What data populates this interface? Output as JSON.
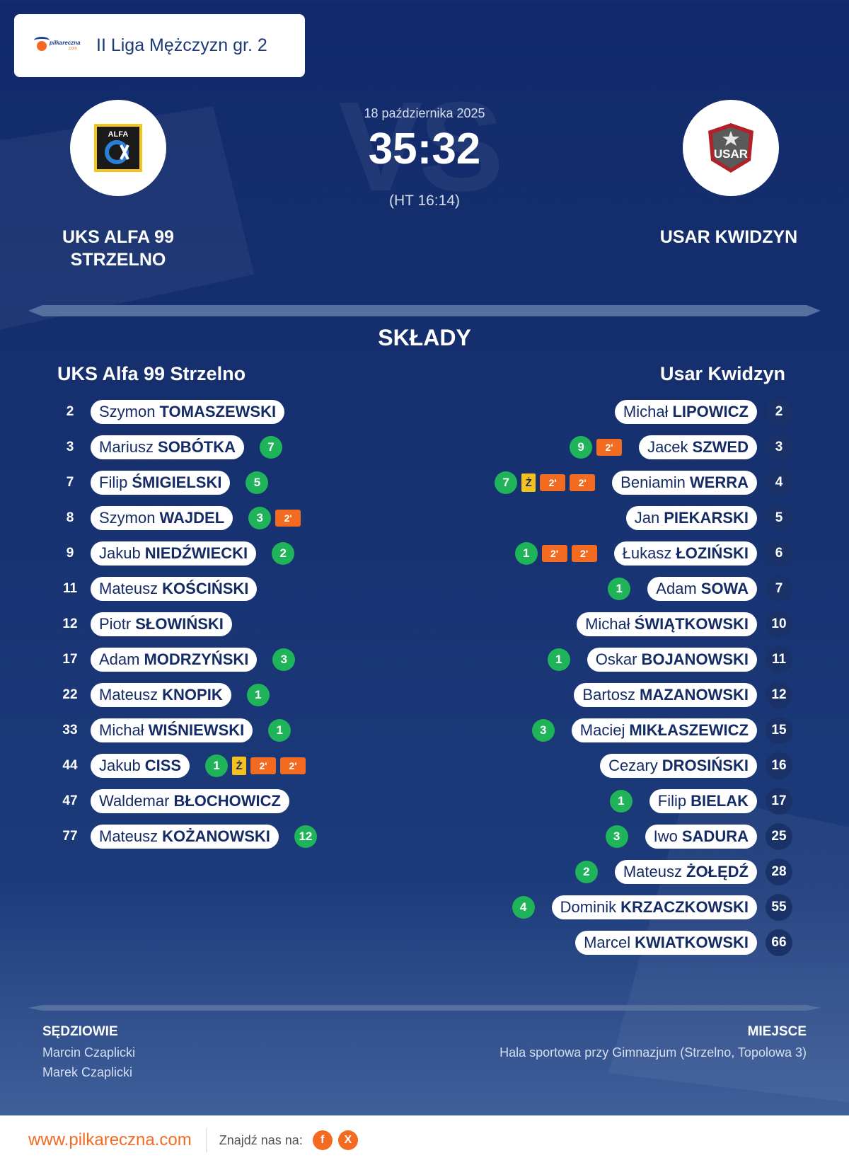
{
  "league": {
    "title": "II Liga Mężczyzn gr. 2",
    "logo_text": "pilkareczna",
    "logo_sub": ".com"
  },
  "match": {
    "date": "18 października 2025",
    "score": "35:32",
    "halftime": "(HT 16:14)",
    "vs": "VS"
  },
  "home": {
    "name_line1": "UKS ALFA 99",
    "name_line2": "STRZELNO",
    "logo_text": "ALFA",
    "roster_title": "UKS Alfa 99 Strzelno",
    "players": [
      {
        "num": "2",
        "first": "Szymon",
        "last": "TOMASZEWSKI",
        "events": []
      },
      {
        "num": "3",
        "first": "Mariusz",
        "last": "SOBÓTKA",
        "events": [
          {
            "type": "goal",
            "text": "7"
          }
        ]
      },
      {
        "num": "7",
        "first": "Filip",
        "last": "ŚMIGIELSKI",
        "events": [
          {
            "type": "goal",
            "text": "5"
          }
        ]
      },
      {
        "num": "8",
        "first": "Szymon",
        "last": "WAJDEL",
        "events": [
          {
            "type": "goal",
            "text": "3"
          },
          {
            "type": "susp",
            "text": "2'"
          }
        ]
      },
      {
        "num": "9",
        "first": "Jakub",
        "last": "NIEDŹWIECKI",
        "events": [
          {
            "type": "goal",
            "text": "2"
          }
        ]
      },
      {
        "num": "11",
        "first": "Mateusz",
        "last": "KOŚCIŃSKI",
        "events": []
      },
      {
        "num": "12",
        "first": "Piotr",
        "last": "SŁOWIŃSKI",
        "events": []
      },
      {
        "num": "17",
        "first": "Adam",
        "last": "MODRZYŃSKI",
        "events": [
          {
            "type": "goal",
            "text": "3"
          }
        ]
      },
      {
        "num": "22",
        "first": "Mateusz",
        "last": "KNOPIK",
        "events": [
          {
            "type": "goal",
            "text": "1"
          }
        ]
      },
      {
        "num": "33",
        "first": "Michał",
        "last": "WIŚNIEWSKI",
        "events": [
          {
            "type": "goal",
            "text": "1"
          }
        ]
      },
      {
        "num": "44",
        "first": "Jakub",
        "last": "CISS",
        "events": [
          {
            "type": "goal",
            "text": "1"
          },
          {
            "type": "yc",
            "text": "Ż"
          },
          {
            "type": "susp",
            "text": "2'"
          },
          {
            "type": "susp",
            "text": "2'"
          }
        ]
      },
      {
        "num": "47",
        "first": "Waldemar",
        "last": "BŁOCHOWICZ",
        "events": []
      },
      {
        "num": "77",
        "first": "Mateusz",
        "last": "KOŻANOWSKI",
        "events": [
          {
            "type": "goal",
            "text": "12"
          }
        ]
      }
    ]
  },
  "away": {
    "name": "USAR KWIDZYN",
    "logo_text": "USAR",
    "roster_title": "Usar Kwidzyn",
    "players": [
      {
        "num": "2",
        "first": "Michał",
        "last": "LIPOWICZ",
        "events": []
      },
      {
        "num": "3",
        "first": "Jacek",
        "last": "SZWED",
        "events": [
          {
            "type": "goal",
            "text": "9"
          },
          {
            "type": "susp",
            "text": "2'"
          }
        ]
      },
      {
        "num": "4",
        "first": "Beniamin",
        "last": "WERRA",
        "events": [
          {
            "type": "goal",
            "text": "7"
          },
          {
            "type": "yc",
            "text": "Ż"
          },
          {
            "type": "susp",
            "text": "2'"
          },
          {
            "type": "susp",
            "text": "2'"
          }
        ]
      },
      {
        "num": "5",
        "first": "Jan",
        "last": "PIEKARSKI",
        "events": []
      },
      {
        "num": "6",
        "first": "Łukasz",
        "last": "ŁOZIŃSKI",
        "events": [
          {
            "type": "goal",
            "text": "1"
          },
          {
            "type": "susp",
            "text": "2'"
          },
          {
            "type": "susp",
            "text": "2'"
          }
        ]
      },
      {
        "num": "7",
        "first": "Adam",
        "last": "SOWA",
        "events": [
          {
            "type": "goal",
            "text": "1"
          }
        ]
      },
      {
        "num": "10",
        "first": "Michał",
        "last": "ŚWIĄTKOWSKI",
        "events": []
      },
      {
        "num": "11",
        "first": "Oskar",
        "last": "BOJANOWSKI",
        "events": [
          {
            "type": "goal",
            "text": "1"
          }
        ]
      },
      {
        "num": "12",
        "first": "Bartosz",
        "last": "MAZANOWSKI",
        "events": []
      },
      {
        "num": "15",
        "first": "Maciej",
        "last": "MIKŁASZEWICZ",
        "events": [
          {
            "type": "goal",
            "text": "3"
          }
        ]
      },
      {
        "num": "16",
        "first": "Cezary",
        "last": "DROSIŃSKI",
        "events": []
      },
      {
        "num": "17",
        "first": "Filip",
        "last": "BIELAK",
        "events": [
          {
            "type": "goal",
            "text": "1"
          }
        ]
      },
      {
        "num": "25",
        "first": "Iwo",
        "last": "SADURA",
        "events": [
          {
            "type": "goal",
            "text": "3"
          }
        ]
      },
      {
        "num": "28",
        "first": "Mateusz",
        "last": "ŻOŁĘDŹ",
        "events": [
          {
            "type": "goal",
            "text": "2"
          }
        ]
      },
      {
        "num": "55",
        "first": "Dominik",
        "last": "KRZACZKOWSKI",
        "events": [
          {
            "type": "goal",
            "text": "4"
          }
        ]
      },
      {
        "num": "66",
        "first": "Marcel",
        "last": "KWIATKOWSKI",
        "events": []
      }
    ]
  },
  "lineups_title": "SKŁADY",
  "referees": {
    "title": "SĘDZIOWIE",
    "names": [
      "Marcin Czaplicki",
      "Marek Czaplicki"
    ]
  },
  "venue": {
    "title": "MIEJSCE",
    "text": "Hala sportowa przy Gimnazjum (Strzelno, Topolowa 3)"
  },
  "footer": {
    "site": "www.pilkareczna.com",
    "find_us": "Znajdź nas na:",
    "social": [
      {
        "icon": "facebook-icon",
        "glyph": "f"
      },
      {
        "icon": "x-icon",
        "glyph": "X"
      }
    ]
  },
  "colors": {
    "background": "#16306f",
    "accent": "#f26b21",
    "goal": "#1fb35a",
    "yellow_card": "#f5c21b"
  }
}
